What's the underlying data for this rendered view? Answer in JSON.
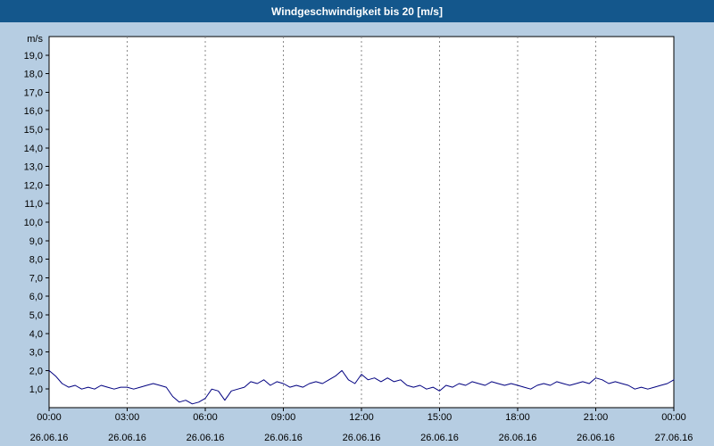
{
  "colors": {
    "titlebar_bg": "#14578c",
    "titlebar_text": "#ffffff",
    "page_bg": "#b6cde2",
    "plot_bg": "#ffffff",
    "axis": "#000000",
    "grid": "#8a8a8a",
    "line": "#000080"
  },
  "chart_data": {
    "type": "line",
    "title": "Windgeschwindigkeit bis 20 [m/s]",
    "ylabel": "m/s",
    "series_name": "Windgeschwindigkeit",
    "xlim": [
      0,
      24
    ],
    "ylim": [
      0,
      20
    ],
    "grid": "vertical-dashed",
    "legend": "none",
    "ytick_values": [
      1,
      2,
      3,
      4,
      5,
      6,
      7,
      8,
      9,
      10,
      11,
      12,
      13,
      14,
      15,
      16,
      17,
      18,
      19
    ],
    "ytick_labels": [
      "1,0",
      "2,0",
      "3,0",
      "4,0",
      "5,0",
      "6,0",
      "7,0",
      "8,0",
      "9,0",
      "10,0",
      "11,0",
      "12,0",
      "13,0",
      "14,0",
      "15,0",
      "16,0",
      "17,0",
      "18,0",
      "19,0"
    ],
    "xticks": [
      {
        "hour": 0,
        "time": "00:00",
        "date": "26.06.16"
      },
      {
        "hour": 3,
        "time": "03:00",
        "date": "26.06.16"
      },
      {
        "hour": 6,
        "time": "06:00",
        "date": "26.06.16"
      },
      {
        "hour": 9,
        "time": "09:00",
        "date": "26.06.16"
      },
      {
        "hour": 12,
        "time": "12:00",
        "date": "26.06.16"
      },
      {
        "hour": 15,
        "time": "15:00",
        "date": "26.06.16"
      },
      {
        "hour": 18,
        "time": "18:00",
        "date": "26.06.16"
      },
      {
        "hour": 21,
        "time": "21:00",
        "date": "26.06.16"
      },
      {
        "hour": 24,
        "time": "00:00",
        "date": "27.06.16"
      }
    ],
    "interval_hours": 0.25,
    "values": [
      2.0,
      1.7,
      1.3,
      1.1,
      1.2,
      1.0,
      1.1,
      1.0,
      1.2,
      1.1,
      1.0,
      1.1,
      1.1,
      1.0,
      1.1,
      1.2,
      1.3,
      1.2,
      1.1,
      0.6,
      0.3,
      0.4,
      0.2,
      0.3,
      0.5,
      1.0,
      0.9,
      0.4,
      0.9,
      1.0,
      1.1,
      1.4,
      1.3,
      1.5,
      1.2,
      1.4,
      1.3,
      1.1,
      1.2,
      1.1,
      1.3,
      1.4,
      1.3,
      1.5,
      1.7,
      2.0,
      1.5,
      1.3,
      1.8,
      1.5,
      1.6,
      1.4,
      1.6,
      1.4,
      1.5,
      1.2,
      1.1,
      1.2,
      1.0,
      1.1,
      0.9,
      1.2,
      1.1,
      1.3,
      1.2,
      1.4,
      1.3,
      1.2,
      1.4,
      1.3,
      1.2,
      1.3,
      1.2,
      1.1,
      1.0,
      1.2,
      1.3,
      1.2,
      1.4,
      1.3,
      1.2,
      1.3,
      1.4,
      1.3,
      1.6,
      1.5,
      1.3,
      1.4,
      1.3,
      1.2,
      1.0,
      1.1,
      1.0,
      1.1,
      1.2,
      1.3,
      1.5
    ]
  }
}
